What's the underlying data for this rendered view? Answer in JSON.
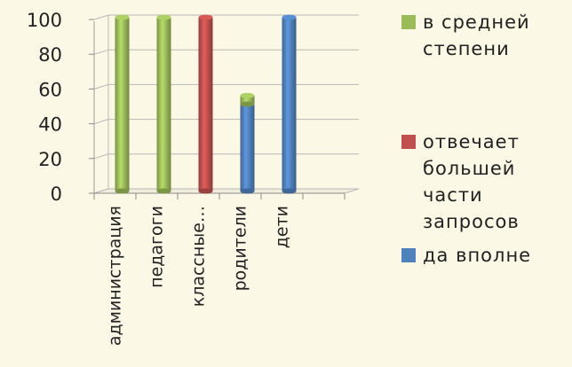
{
  "chart_data": {
    "type": "bar",
    "stacked": true,
    "categories": [
      "администрация",
      "педагоги",
      "классные…",
      "родители",
      "дети"
    ],
    "series": [
      {
        "name": "да вполне",
        "color": "#4f81bd",
        "values": [
          0,
          0,
          0,
          50,
          100
        ]
      },
      {
        "name": "отвечает большей части запросов",
        "color": "#c0504d",
        "values": [
          0,
          0,
          100,
          0,
          0
        ]
      },
      {
        "name": "в средней степени",
        "color": "#9bbb59",
        "values": [
          100,
          100,
          0,
          5,
          0
        ]
      }
    ],
    "y_ticks": [
      0,
      20,
      40,
      60,
      80,
      100
    ],
    "ylim": [
      0,
      100
    ],
    "grid": true,
    "three_d": true,
    "legend_position": "right"
  },
  "legend": {
    "items": [
      {
        "label": "в средней степени",
        "color": "#9bbb59"
      },
      {
        "label": "отвечает большей части запросов",
        "color": "#c0504d"
      },
      {
        "label": "да вполне",
        "color": "#4f81bd"
      }
    ]
  }
}
